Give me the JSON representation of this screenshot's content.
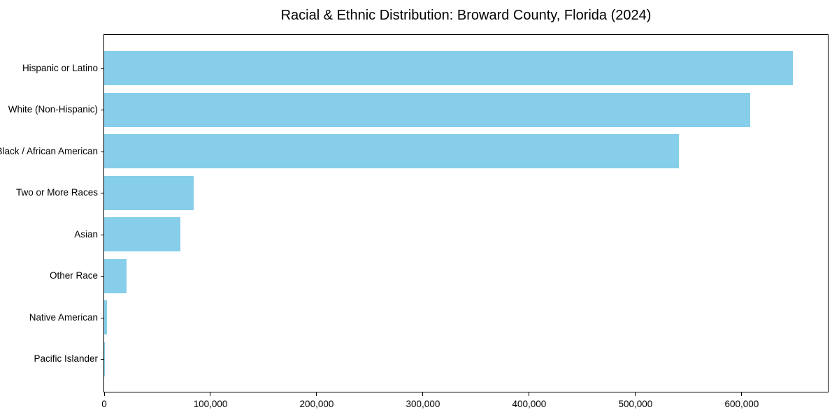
{
  "title": "Racial & Ethnic Distribution: Broward County, Florida (2024)",
  "chart_data": {
    "type": "bar",
    "orientation": "horizontal",
    "title": "Racial & Ethnic Distribution: Broward County, Florida (2024)",
    "categories": [
      "Hispanic or Latino",
      "White (Non-Hispanic)",
      "Black / African American",
      "Two or More Races",
      "Asian",
      "Other Race",
      "Native American",
      "Pacific Islander"
    ],
    "values": [
      648000,
      608000,
      541000,
      84000,
      72000,
      21000,
      2400,
      600
    ],
    "xlabel": "",
    "ylabel": "",
    "xlim": [
      0,
      681000
    ],
    "x_ticks": [
      0,
      100000,
      200000,
      300000,
      400000,
      500000,
      600000
    ],
    "x_tick_labels": [
      "0",
      "100,000",
      "200,000",
      "300,000",
      "400,000",
      "500,000",
      "600,000"
    ],
    "bar_color": "#87CEEB",
    "background_color": "#FFFFFF",
    "axis_color": "#000000",
    "grid": false,
    "legend": null,
    "bars_sorted": "descending"
  }
}
